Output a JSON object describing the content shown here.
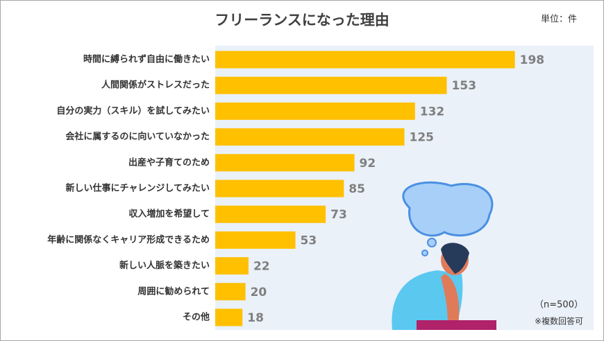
{
  "chart_data": {
    "type": "bar",
    "orientation": "horizontal",
    "title": "フリーランスになった理由",
    "unit_label": "単位：件",
    "sample_note": "（n=500）",
    "multi_note": "※複数回答可",
    "categories": [
      "時間に縛られず自由に働きたい",
      "人間関係がストレスだった",
      "自分の実力（スキル）を試してみたい",
      "会社に属するのに向いていなかった",
      "出産や子育てのため",
      "新しい仕事にチャレンジしてみたい",
      "収入増加を希望して",
      "年齢に関係なくキャリア形成できるため",
      "新しい人脈を築きたい",
      "周囲に勧められて",
      "その他"
    ],
    "values": [
      198,
      153,
      132,
      125,
      92,
      85,
      73,
      53,
      22,
      20,
      18
    ],
    "color": "#ffc000",
    "xlim": [
      0,
      250
    ]
  }
}
